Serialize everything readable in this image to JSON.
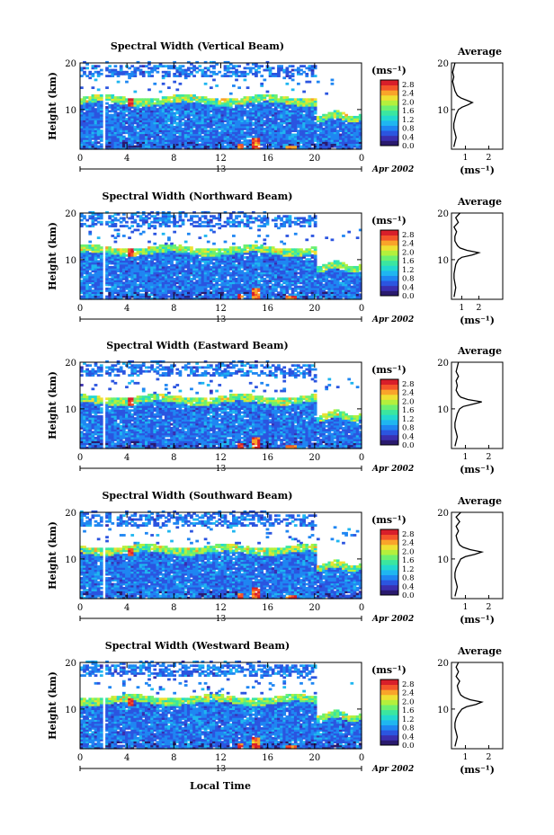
{
  "chart_data": {
    "type": "heatmap",
    "date_label": "Apr 2002",
    "day_label": "13",
    "x_label": "Local Time",
    "y_label": "Height (km)",
    "unit_label": "(ms⁻¹)",
    "xlim": [
      0,
      24
    ],
    "x_ticks": [
      "0",
      "4",
      "8",
      "12",
      "16",
      "20",
      "0"
    ],
    "ylim": [
      1.5,
      20
    ],
    "y_ticks": [
      "20",
      "10"
    ],
    "colorbar": {
      "range": [
        0,
        3.0
      ],
      "ticks": [
        "2.8",
        "2.4",
        "2.0",
        "1.6",
        "1.2",
        "0.8",
        "0.4",
        "0.0"
      ],
      "colors": [
        "#2a1a6e",
        "#3a2fb0",
        "#2b55e0",
        "#1f86f2",
        "#1fb6f0",
        "#22d8d0",
        "#3be6a0",
        "#6df070",
        "#b4f03c",
        "#eee032",
        "#f9a42a",
        "#f4562a",
        "#d81e2a"
      ]
    },
    "average_title": "Average",
    "panels": [
      {
        "title": "Spectral Width (Vertical Beam)",
        "average_profile": {
          "x_ticks": [
            "1",
            "2"
          ],
          "xlim": [
            0.4,
            2.6
          ],
          "height_km": [
            2,
            3,
            4,
            5,
            6,
            7,
            8,
            9,
            10,
            10.5,
            11,
            11.5,
            12,
            12.5,
            13,
            14,
            15,
            16,
            17,
            18,
            19,
            20
          ],
          "width_ms": [
            0.5,
            0.55,
            0.6,
            0.55,
            0.5,
            0.5,
            0.55,
            0.6,
            0.7,
            0.85,
            1.1,
            1.3,
            1.05,
            0.8,
            0.65,
            0.55,
            0.5,
            0.45,
            0.5,
            0.45,
            0.5,
            0.55
          ]
        }
      },
      {
        "title": "Spectral Width (Northward Beam)",
        "average_profile": {
          "x_ticks": [
            "1",
            "2"
          ],
          "xlim": [
            0.4,
            3.4
          ],
          "height_km": [
            2,
            3,
            4,
            5,
            6,
            7,
            8,
            9,
            10,
            10.5,
            11,
            11.5,
            12,
            12.5,
            13,
            14,
            15,
            16,
            17,
            18,
            19,
            20
          ],
          "width_ms": [
            0.55,
            0.6,
            0.65,
            0.6,
            0.55,
            0.55,
            0.6,
            0.65,
            0.8,
            1.0,
            1.6,
            2.0,
            1.3,
            0.9,
            0.75,
            0.6,
            0.6,
            0.7,
            0.55,
            0.8,
            0.65,
            0.9
          ]
        }
      },
      {
        "title": "Spectral Width (Eastward Beam)",
        "average_profile": {
          "x_ticks": [
            "1",
            "2"
          ],
          "xlim": [
            0.4,
            2.6
          ],
          "height_km": [
            2,
            3,
            4,
            5,
            6,
            7,
            8,
            9,
            10,
            10.5,
            11,
            11.5,
            12,
            12.5,
            13,
            14,
            15,
            16,
            17,
            18,
            19,
            20
          ],
          "width_ms": [
            0.55,
            0.6,
            0.65,
            0.6,
            0.55,
            0.55,
            0.6,
            0.65,
            0.75,
            0.9,
            1.3,
            1.7,
            1.1,
            0.8,
            0.7,
            0.6,
            0.65,
            0.6,
            0.7,
            0.6,
            0.65,
            0.7
          ]
        }
      },
      {
        "title": "Spectral Width (Southward Beam)",
        "average_profile": {
          "x_ticks": [
            "1",
            "2"
          ],
          "xlim": [
            0.4,
            2.6
          ],
          "height_km": [
            2,
            3,
            4,
            5,
            6,
            7,
            8,
            9,
            10,
            10.5,
            11,
            11.5,
            12,
            12.5,
            13,
            14,
            15,
            16,
            17,
            18,
            19,
            20
          ],
          "width_ms": [
            0.55,
            0.6,
            0.65,
            0.6,
            0.55,
            0.55,
            0.6,
            0.7,
            0.8,
            1.0,
            1.4,
            1.7,
            1.2,
            0.9,
            0.75,
            0.65,
            0.6,
            0.7,
            0.6,
            0.75,
            0.6,
            0.8
          ]
        }
      },
      {
        "title": "Spectral Width (Westward Beam)",
        "average_profile": {
          "x_ticks": [
            "1",
            "2"
          ],
          "xlim": [
            0.4,
            2.6
          ],
          "height_km": [
            2,
            3,
            4,
            5,
            6,
            7,
            8,
            9,
            10,
            10.5,
            11,
            11.5,
            12,
            12.5,
            13,
            14,
            15,
            16,
            17,
            18,
            19,
            20
          ],
          "width_ms": [
            0.55,
            0.6,
            0.65,
            0.6,
            0.55,
            0.55,
            0.6,
            0.7,
            0.85,
            1.05,
            1.45,
            1.7,
            1.2,
            0.95,
            0.8,
            0.7,
            0.65,
            0.75,
            0.6,
            0.7,
            0.6,
            0.7
          ]
        }
      }
    ]
  }
}
